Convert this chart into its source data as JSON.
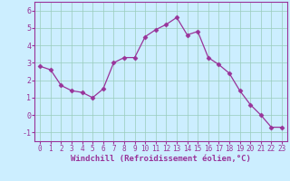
{
  "x": [
    0,
    1,
    2,
    3,
    4,
    5,
    6,
    7,
    8,
    9,
    10,
    11,
    12,
    13,
    14,
    15,
    16,
    17,
    18,
    19,
    20,
    21,
    22,
    23
  ],
  "y": [
    2.8,
    2.6,
    1.7,
    1.4,
    1.3,
    1.0,
    1.5,
    3.0,
    3.3,
    3.3,
    4.5,
    4.9,
    5.2,
    5.6,
    4.6,
    4.8,
    3.3,
    2.9,
    2.4,
    1.4,
    0.6,
    0.0,
    -0.7,
    -0.7
  ],
  "line_color": "#993399",
  "marker": "D",
  "marker_size": 2.5,
  "bg_color": "#cceeff",
  "grid_color": "#99ccbb",
  "xlabel": "Windchill (Refroidissement éolien,°C)",
  "xlim": [
    -0.5,
    23.5
  ],
  "ylim": [
    -1.5,
    6.5
  ],
  "yticks": [
    -1,
    0,
    1,
    2,
    3,
    4,
    5,
    6
  ],
  "xticks": [
    0,
    1,
    2,
    3,
    4,
    5,
    6,
    7,
    8,
    9,
    10,
    11,
    12,
    13,
    14,
    15,
    16,
    17,
    18,
    19,
    20,
    21,
    22,
    23
  ],
  "xtick_labels": [
    "0",
    "1",
    "2",
    "3",
    "4",
    "5",
    "6",
    "7",
    "8",
    "9",
    "10",
    "11",
    "12",
    "13",
    "14",
    "15",
    "16",
    "17",
    "18",
    "19",
    "20",
    "21",
    "22",
    "23"
  ],
  "tick_color": "#993399",
  "label_color": "#993399",
  "spine_color": "#993399",
  "tick_fontsize": 5.5,
  "label_fontsize": 6.5
}
